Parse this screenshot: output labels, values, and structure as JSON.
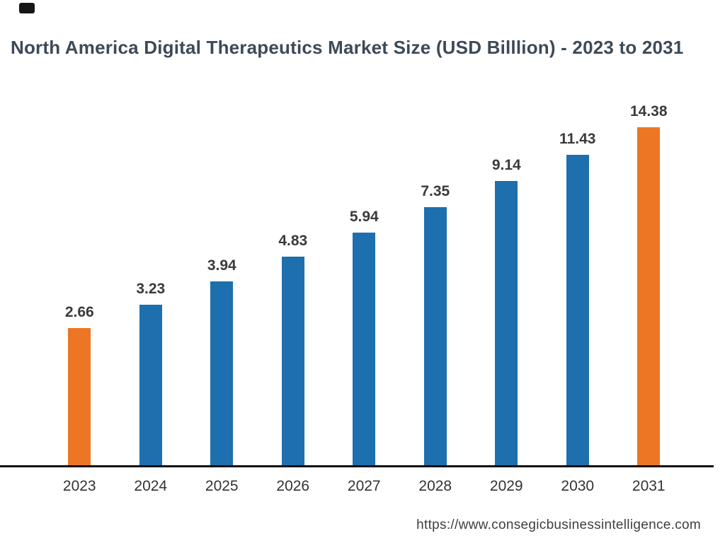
{
  "title": "North America Digital Therapeutics Market Size (USD Billlion) - 2023 to 2031",
  "footer": {
    "url": "https://www.consegicbusinessintelligence.com"
  },
  "colors": {
    "bar_default": "#1e6fad",
    "bar_highlight": "#ec7623",
    "title_text": "#3d4a57",
    "label_text": "#3a3a3a",
    "axis_line": "#101010"
  },
  "chart_data": {
    "type": "bar",
    "title": "North America Digital Therapeutics Market Size (USD Billlion) - 2023 to 2031",
    "categories": [
      "2023",
      "2024",
      "2025",
      "2026",
      "2027",
      "2028",
      "2029",
      "2030",
      "2031"
    ],
    "values": [
      2.66,
      3.23,
      3.94,
      4.83,
      5.94,
      7.35,
      9.14,
      11.43,
      14.38
    ],
    "highlighted_categories": [
      "2023",
      "2031"
    ],
    "value_labels_shown": true,
    "xlabel": "",
    "ylabel": "",
    "gridlines": false,
    "legend": false,
    "y_axis_shown": false
  }
}
